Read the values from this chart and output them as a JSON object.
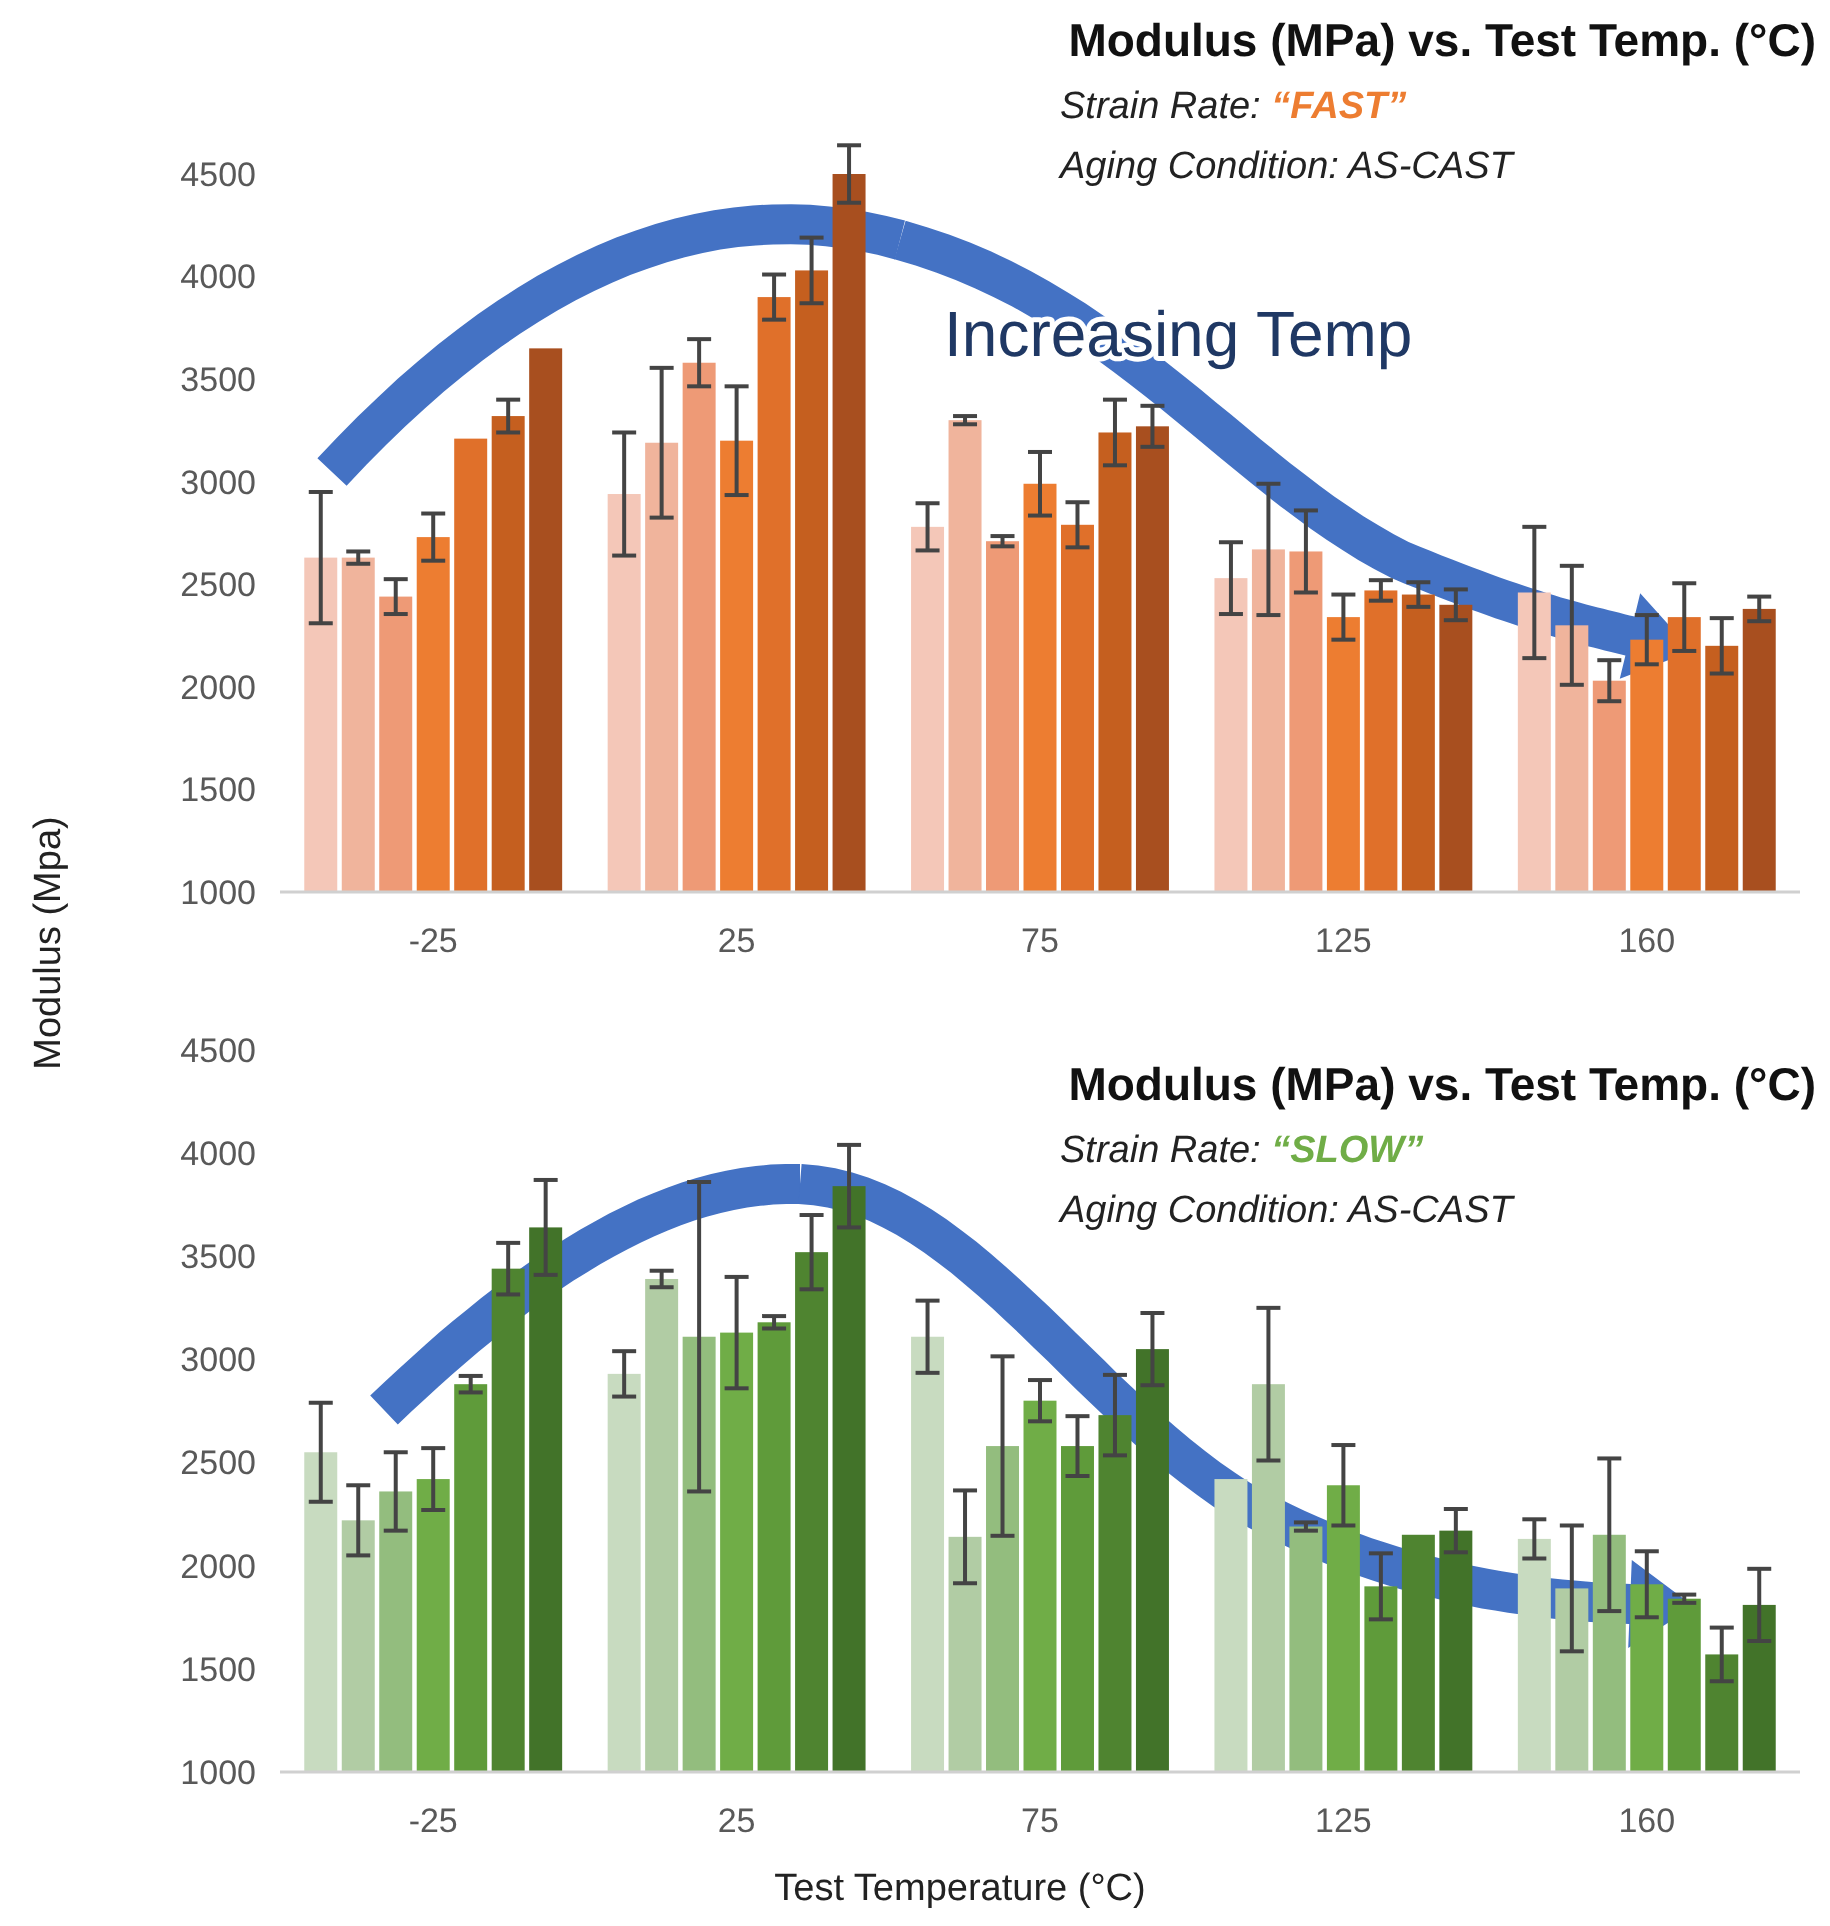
{
  "chart_data": [
    {
      "type": "bar",
      "title": "Modulus  (MPa) vs. Test Temp. (°C)",
      "subtitle": "Strain Rate: “FAST”",
      "annotations": [
        "Aging Condition: AS-CAST",
        "Increasing Temp"
      ],
      "ylabel": "Modulus (Mpa)",
      "categories": [
        "-25",
        "25",
        "75",
        "125",
        "160"
      ],
      "ylim": [
        1000,
        4500
      ],
      "yticks": [
        1000,
        1500,
        2000,
        2500,
        3000,
        3500,
        4000,
        4500
      ],
      "grid": false,
      "series": [
        {
          "color": "#f4c7b8",
          "values": [
            2630,
            2940,
            2780,
            2530,
            2460
          ],
          "errors": [
            320,
            300,
            115,
            175,
            320
          ]
        },
        {
          "color": "#f0b49c",
          "values": [
            2630,
            3190,
            3300,
            2670,
            2300
          ],
          "errors": [
            30,
            365,
            20,
            320,
            290
          ]
        },
        {
          "color": "#ee9a76",
          "values": [
            2440,
            3580,
            2710,
            2660,
            2030
          ],
          "errors": [
            85,
            115,
            25,
            200,
            100
          ]
        },
        {
          "color": "#ed7d31",
          "values": [
            2730,
            3200,
            2990,
            2340,
            2230
          ],
          "errors": [
            115,
            265,
            155,
            110,
            120
          ]
        },
        {
          "color": "#e0702a",
          "values": [
            3210,
            3900,
            2790,
            2470,
            2340
          ],
          "errors": [
            null,
            110,
            110,
            50,
            165
          ]
        },
        {
          "color": "#c55f1f",
          "values": [
            3320,
            4030,
            3240,
            2450,
            2200
          ],
          "errors": [
            80,
            160,
            160,
            60,
            135
          ]
        },
        {
          "color": "#a84f1f",
          "values": [
            3650,
            4500,
            3270,
            2400,
            2380
          ],
          "errors": [
            null,
            140,
            100,
            75,
            60
          ]
        }
      ]
    },
    {
      "type": "bar",
      "title": "Modulus  (MPa) vs. Test Temp. (°C)",
      "subtitle": "Strain Rate: “SLOW”",
      "annotations": [
        "Aging Condition: AS-CAST"
      ],
      "xlabel": "Test Temperature (°C)",
      "categories": [
        "-25",
        "25",
        "75",
        "125",
        "160"
      ],
      "ylim": [
        1000,
        4500
      ],
      "yticks": [
        1000,
        1500,
        2000,
        2500,
        3000,
        3500,
        4000,
        4500
      ],
      "grid": false,
      "series": [
        {
          "color": "#c8dbc0",
          "values": [
            2550,
            2930,
            3110,
            2420,
            2130
          ],
          "errors": [
            240,
            110,
            175,
            null,
            95
          ]
        },
        {
          "color": "#b1cca4",
          "values": [
            2220,
            3390,
            2140,
            2880,
            1890
          ],
          "errors": [
            170,
            40,
            225,
            370,
            305
          ]
        },
        {
          "color": "#93bd7e",
          "values": [
            2360,
            3110,
            2580,
            2190,
            2150
          ],
          "errors": [
            190,
            750,
            435,
            20,
            370
          ]
        },
        {
          "color": "#70ad47",
          "values": [
            2420,
            3130,
            2800,
            2390,
            1910
          ],
          "errors": [
            150,
            270,
            100,
            195,
            160
          ]
        },
        {
          "color": "#5f9b3a",
          "values": [
            2880,
            3180,
            2580,
            1900,
            1840
          ],
          "errors": [
            40,
            30,
            145,
            160,
            20
          ]
        },
        {
          "color": "#4f8430",
          "values": [
            3440,
            3520,
            2730,
            2150,
            1570
          ],
          "errors": [
            125,
            180,
            195,
            null,
            130
          ]
        },
        {
          "color": "#427329",
          "values": [
            3640,
            3840,
            3050,
            2170,
            1810
          ],
          "errors": [
            230,
            200,
            175,
            105,
            175
          ]
        }
      ]
    }
  ]
}
